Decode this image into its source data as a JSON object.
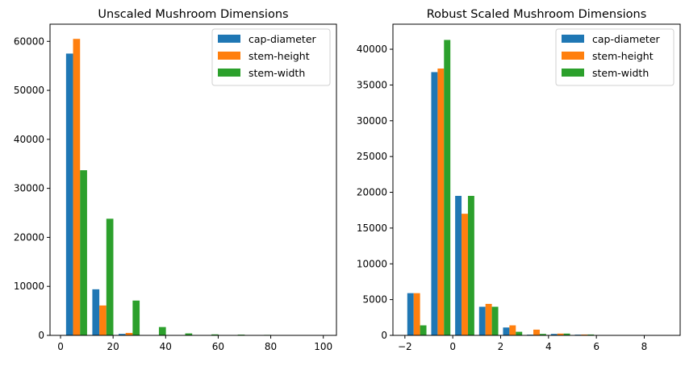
{
  "chart_data": [
    {
      "type": "bar",
      "title": "Unscaled Mushroom Dimensions",
      "xlabel": "",
      "ylabel": "",
      "xlim": [
        -4,
        105
      ],
      "ylim": [
        0,
        63500
      ],
      "xticks": [
        0,
        20,
        40,
        60,
        80,
        100
      ],
      "yticks": [
        0,
        10000,
        20000,
        30000,
        40000,
        50000,
        60000
      ],
      "grid": false,
      "legend_position": "top-right",
      "bin_edges": [
        1.1,
        11.1,
        21.1,
        31.1,
        41.1,
        51.1,
        61.1,
        71.1,
        81.1,
        91.1,
        101.1
      ],
      "series": [
        {
          "name": "cap-diameter",
          "color": "#1f77b4",
          "values": [
            57500,
            9400,
            300,
            50,
            20,
            10,
            5,
            3,
            2,
            1
          ]
        },
        {
          "name": "stem-height",
          "color": "#ff7f0e",
          "values": [
            60500,
            6100,
            500,
            50,
            20,
            10,
            5,
            3,
            2,
            1
          ]
        },
        {
          "name": "stem-width",
          "color": "#2ca02c",
          "values": [
            33700,
            23800,
            7100,
            1700,
            400,
            200,
            150,
            100,
            30,
            10
          ]
        }
      ]
    },
    {
      "type": "bar",
      "title": "Robust Scaled Mushroom Dimensions",
      "xlabel": "",
      "ylabel": "",
      "xlim": [
        -2.5,
        9.5
      ],
      "ylim": [
        0,
        43500
      ],
      "xticks": [
        -2,
        0,
        2,
        4,
        6,
        8
      ],
      "yticks": [
        0,
        5000,
        10000,
        15000,
        20000,
        25000,
        30000,
        35000,
        40000
      ],
      "grid": false,
      "legend_position": "top-right",
      "bin_edges": [
        -2.0,
        -1.0,
        0.0,
        1.0,
        2.0,
        3.0,
        4.0,
        5.0,
        6.0,
        7.0,
        8.0
      ],
      "series": [
        {
          "name": "cap-diameter",
          "color": "#1f77b4",
          "values": [
            5900,
            36800,
            19500,
            4000,
            1100,
            100,
            200,
            100,
            20,
            10
          ]
        },
        {
          "name": "stem-height",
          "color": "#ff7f0e",
          "values": [
            5900,
            37300,
            17000,
            4400,
            1400,
            800,
            250,
            120,
            20,
            10
          ]
        },
        {
          "name": "stem-width",
          "color": "#2ca02c",
          "values": [
            1400,
            41300,
            19500,
            4000,
            500,
            200,
            250,
            120,
            20,
            10
          ]
        }
      ]
    }
  ]
}
